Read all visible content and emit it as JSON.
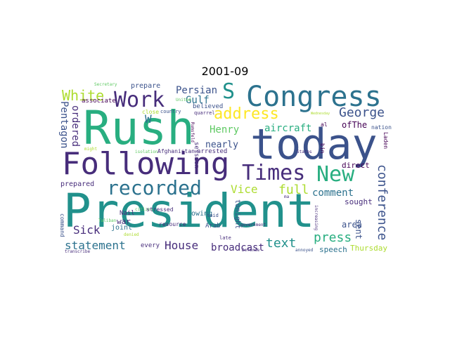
{
  "title": "2001-09",
  "colors": {
    "dark_purple": "#440154",
    "indigo": "#472d7b",
    "blue_purple": "#3b528b",
    "slate_blue": "#2c728e",
    "teal": "#21918c",
    "green_teal": "#28ae80",
    "green": "#5ec962",
    "yellow_green": "#addc30",
    "yellow": "#fde725"
  },
  "words": [
    {
      "text": "President"
    },
    {
      "text": "Rush"
    },
    {
      "text": "today"
    },
    {
      "text": "Following"
    },
    {
      "text": "Congress"
    },
    {
      "text": "recorded"
    },
    {
      "text": "Times"
    },
    {
      "text": "Work"
    },
    {
      "text": "New"
    },
    {
      "text": "S"
    },
    {
      "text": "address"
    },
    {
      "text": "White"
    },
    {
      "text": "George"
    },
    {
      "text": "full"
    },
    {
      "text": "conference"
    },
    {
      "text": "press"
    },
    {
      "text": "statement"
    },
    {
      "text": "House"
    },
    {
      "text": "text"
    },
    {
      "text": "Sick"
    },
    {
      "text": "Vice"
    },
    {
      "text": "Persian"
    },
    {
      "text": "Henry"
    },
    {
      "text": "W"
    },
    {
      "text": "Gulf"
    },
    {
      "text": "aircraft"
    },
    {
      "text": "comment"
    },
    {
      "text": "broadcast"
    },
    {
      "text": "Pentagon"
    },
    {
      "text": "ordered"
    },
    {
      "text": "nearly"
    },
    {
      "text": "ofThe"
    },
    {
      "text": "area"
    },
    {
      "text": "sent"
    },
    {
      "text": "speech"
    },
    {
      "text": "Thursday"
    },
    {
      "text": "direct"
    },
    {
      "text": "sought"
    },
    {
      "text": "prepare"
    },
    {
      "text": "associate"
    },
    {
      "text": "prepared"
    },
    {
      "text": "owing"
    },
    {
      "text": "war"
    },
    {
      "text": "joint"
    },
    {
      "text": "Nail"
    },
    {
      "text": "every"
    },
    {
      "text": "tonight"
    },
    {
      "text": "session"
    },
    {
      "text": "arrested"
    },
    {
      "text": "believed"
    },
    {
      "text": "Arab"
    },
    {
      "text": "resource"
    },
    {
      "text": "command"
    },
    {
      "text": "nation"
    },
    {
      "text": "Laden"
    },
    {
      "text": "bin"
    },
    {
      "text": "al"
    },
    {
      "text": "close"
    },
    {
      "text": "country"
    },
    {
      "text": "quarrel"
    },
    {
      "text": "United"
    },
    {
      "text": "States"
    },
    {
      "text": "isolation"
    },
    {
      "text": "Afghanistan"
    },
    {
      "text": "citizen"
    },
    {
      "text": "stressed"
    },
    {
      "text": "Taliban"
    },
    {
      "text": "said"
    },
    {
      "text": "Secretary"
    },
    {
      "text": "Rumsfeld"
    },
    {
      "text": "might"
    },
    {
      "text": "government"
    },
    {
      "text": "Defense"
    },
    {
      "text": "late"
    },
    {
      "text": "Wednesday"
    },
    {
      "text": "increasing"
    },
    {
      "text": "transcribe"
    },
    {
      "text": "denied"
    },
    {
      "text": "annoyed"
    },
    {
      "text": "ma"
    }
  ]
}
